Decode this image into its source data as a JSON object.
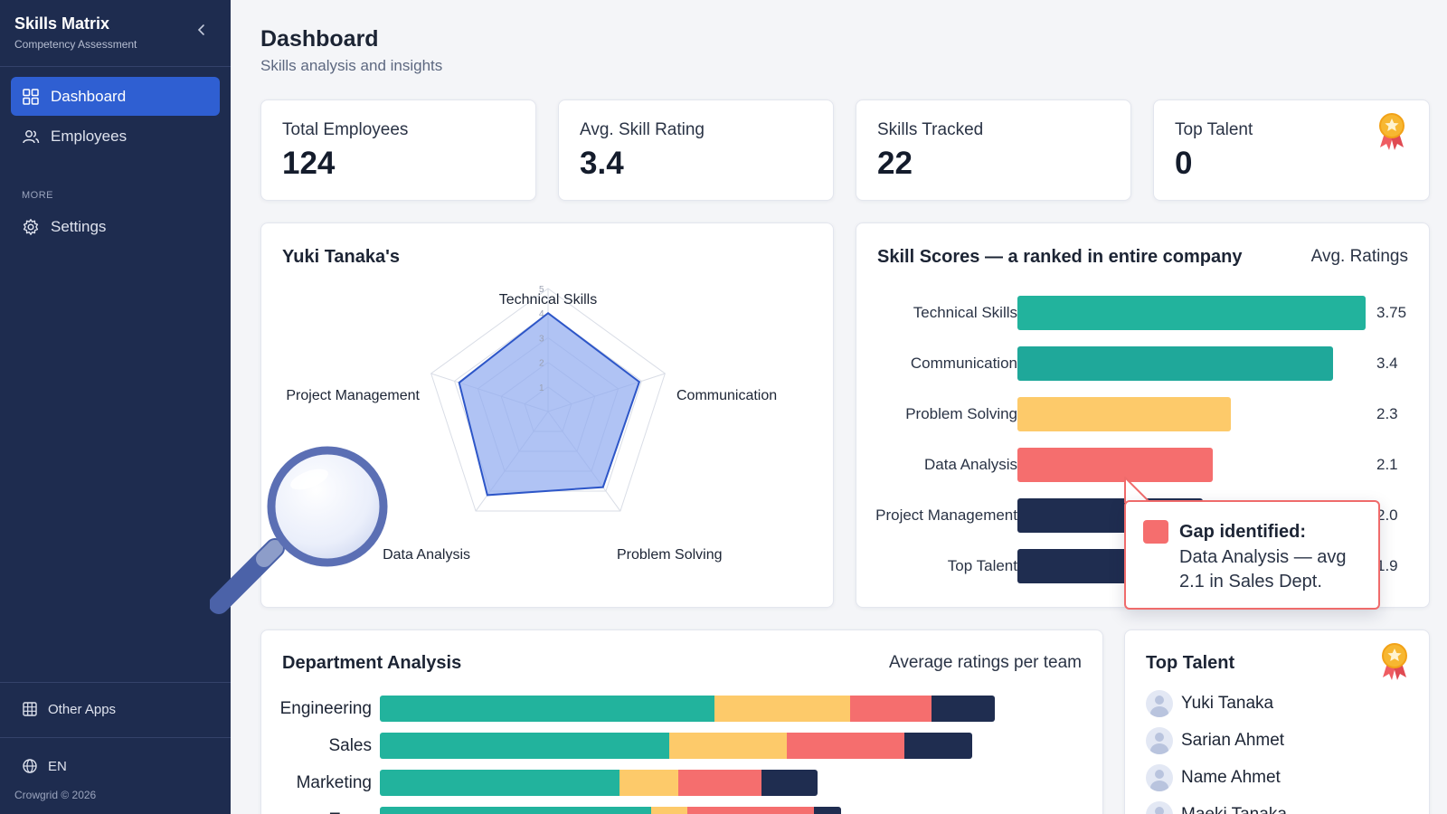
{
  "sidebar": {
    "brand_title": "Skills Matrix",
    "brand_subtitle": "Competency Assessment",
    "nav": [
      {
        "label": "Dashboard",
        "icon": "dashboard-grid-icon",
        "active": true
      },
      {
        "label": "Employees",
        "icon": "users-icon",
        "active": false
      }
    ],
    "section_label": "MORE",
    "more": [
      {
        "label": "Settings",
        "icon": "gear-icon"
      }
    ],
    "other_apps": "Other Apps",
    "language": "EN",
    "copyright": "Crowgrid © 2026"
  },
  "header": {
    "title": "Dashboard",
    "subtitle": "Skills analysis and insights"
  },
  "stats": [
    {
      "label": "Total Employees",
      "value": "124"
    },
    {
      "label": "Avg. Skill Rating",
      "value": "3.4"
    },
    {
      "label": "Skills Tracked",
      "value": "22"
    },
    {
      "label": "Top Talent",
      "value": "0",
      "icon": "award-medal-icon"
    }
  ],
  "radar": {
    "title": "Yuki Tanaka's",
    "ticks": [
      "1",
      "2",
      "3",
      "4",
      "5"
    ]
  },
  "skill_scores": {
    "title": "Skill Scores — a ranked in entire company",
    "subtitle": "Avg. Ratings"
  },
  "tooltip": {
    "title": "Gap identified:",
    "text": "Data Analysis — avg 2.1 in Sales Dept.",
    "color": "#f56e6e"
  },
  "department": {
    "title": "Department Analysis",
    "subtitle": "Average ratings per team"
  },
  "top_talent": {
    "title": "Top Talent",
    "people": [
      "Yuki Tanaka",
      "Sarian Ahmet",
      "Name Ahmet",
      "Maeki Tanaka"
    ]
  },
  "colors": {
    "teal": "#22b39d",
    "teal_dark": "#1fa89a",
    "yellow": "#fdca6a",
    "red": "#f56e6e",
    "navy": "#1f2d50",
    "radar_fill": "#8faaf0",
    "radar_stroke": "#2d56c8",
    "active_nav": "#2f5fd2",
    "sidebar_bg": "#1e2c4f"
  },
  "chart_data": [
    {
      "type": "radar",
      "title": "Yuki Tanaka's",
      "categories": [
        "Technical Skills",
        "Communication",
        "Problem Solving",
        "Data Analysis",
        "Project Management"
      ],
      "values": [
        4.0,
        3.9,
        3.8,
        4.2,
        3.8
      ],
      "rmax": 5
    },
    {
      "type": "bar",
      "orientation": "horizontal",
      "title": "Skill Scores — a ranked in entire company",
      "categories": [
        "Technical Skills",
        "Communication",
        "Problem Solving",
        "Data Analysis",
        "Project Management",
        "Top Talent"
      ],
      "values": [
        3.75,
        3.4,
        2.3,
        2.1,
        2.0,
        1.9
      ],
      "value_labels": [
        "3.75",
        "3.4",
        "2.3",
        "2.1",
        "2.0",
        "1.9"
      ],
      "colors": [
        "#22b39d",
        "#1fa89a",
        "#fdca6a",
        "#f56e6e",
        "#1f2d50",
        "#1f2d50"
      ]
    },
    {
      "type": "bar",
      "orientation": "horizontal",
      "stacked": true,
      "title": "Department Analysis",
      "categories": [
        "Engineering",
        "Sales",
        "Marketing",
        "Team"
      ],
      "series_colors": [
        "#22b39d",
        "#fdca6a",
        "#f56e6e",
        "#1f2d50"
      ],
      "stacks": [
        [
          3.7,
          1.5,
          0.9,
          0.7
        ],
        [
          3.2,
          1.3,
          1.3,
          0.75
        ],
        [
          2.65,
          0.65,
          0.92,
          0.62
        ],
        [
          3.0,
          0.4,
          1.4,
          0.3
        ]
      ]
    }
  ]
}
